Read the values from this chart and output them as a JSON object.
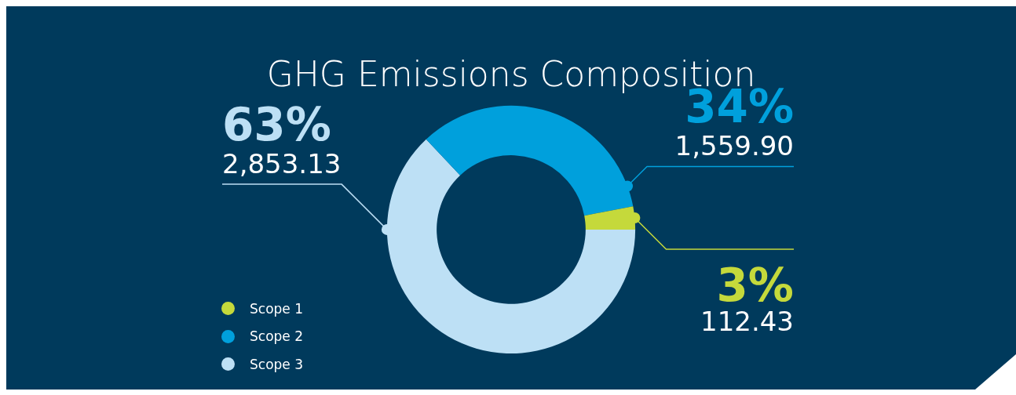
{
  "chart_data": {
    "type": "donut",
    "title": "GHG Emissions Composition",
    "categories": [
      "Scope 1",
      "Scope 2",
      "Scope 3"
    ],
    "values": [
      3,
      34,
      63
    ],
    "colors": [
      "#c5d93b",
      "#00a0dc",
      "#bde0f5"
    ],
    "value_labels": [
      "3%\n112.43",
      "34%\n1,559.90",
      "63%\n2,853.13"
    ],
    "legend": "bottom left"
  }
}
